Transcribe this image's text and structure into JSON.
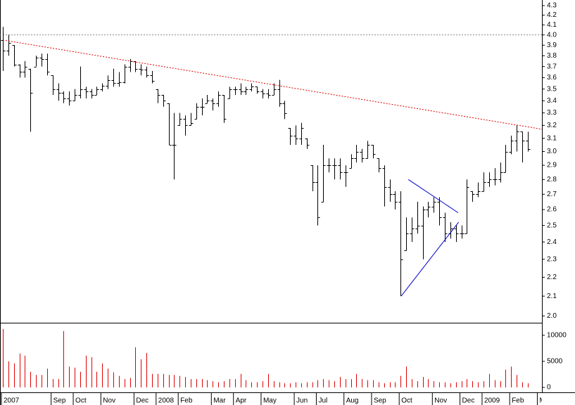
{
  "chart_data": {
    "type": "ohlc",
    "log": true,
    "ylim": [
      1.97,
      4.36
    ],
    "yticks": [
      {
        "value": 2,
        "label": "2.0"
      },
      2.1,
      2.2,
      2.3,
      2.4,
      2.5,
      2.6,
      2.7,
      2.8,
      2.9,
      {
        "value": 3,
        "label": "3.0"
      },
      3.1,
      3.2,
      3.3,
      3.4,
      3.5,
      3.6,
      3.7,
      3.8,
      3.9,
      {
        "value": 4,
        "label": "4.0"
      },
      4.1,
      4.2,
      4.3
    ],
    "color": "#000000",
    "categories": [
      "2007",
      null,
      null,
      null,
      null,
      null,
      null,
      null,
      null,
      "Sep",
      null,
      null,
      null,
      "Oct",
      null,
      null,
      null,
      null,
      "Nov",
      null,
      null,
      null,
      null,
      null,
      "Dec",
      null,
      null,
      null,
      "2008",
      null,
      null,
      null,
      "Feb",
      null,
      null,
      null,
      null,
      null,
      "Mar",
      null,
      null,
      null,
      "Apr",
      null,
      null,
      null,
      null,
      "May",
      null,
      null,
      null,
      null,
      null,
      "Jun",
      null,
      null,
      null,
      "Jul",
      null,
      null,
      null,
      null,
      "Aug",
      null,
      null,
      null,
      null,
      "Sep",
      null,
      null,
      null,
      null,
      "Oct",
      null,
      null,
      null,
      null,
      null,
      "Nov",
      null,
      null,
      null,
      null,
      "Dec",
      null,
      null,
      null,
      "2009",
      null,
      null,
      null,
      null,
      "Feb",
      null,
      null,
      null,
      null,
      "Ma"
    ],
    "open": [
      3.95,
      3.85,
      3.9,
      3.72,
      3.65,
      3.68,
      3.7,
      3.78,
      3.77,
      3.62,
      3.5,
      3.47,
      3.42,
      3.4,
      3.45,
      3.5,
      3.48,
      3.45,
      3.5,
      3.53,
      3.58,
      3.55,
      3.56,
      3.7,
      3.75,
      3.68,
      3.67,
      3.62,
      3.5,
      3.45,
      3.38,
      3.05,
      3.2,
      3.25,
      3.2,
      3.25,
      3.35,
      3.38,
      3.4,
      3.38,
      3.45,
      3.42,
      3.5,
      3.5,
      3.48,
      3.5,
      3.52,
      3.48,
      3.46,
      3.45,
      3.5,
      3.38,
      3.18,
      3.12,
      3.1,
      3.1,
      2.9,
      2.78,
      2.65,
      2.9,
      2.9,
      2.9,
      2.85,
      2.88,
      2.95,
      3.0,
      2.95,
      3.05,
      2.95,
      2.88,
      2.75,
      2.7,
      2.65,
      2.35,
      2.45,
      2.48,
      2.5,
      2.6,
      2.62,
      2.65,
      2.55,
      2.45,
      2.48,
      2.45,
      2.45,
      2.72,
      2.7,
      2.72,
      2.78,
      2.8,
      2.8,
      2.85,
      3.0,
      3.08,
      3.15,
      3.08,
      null,
      null
    ],
    "high": [
      4.08,
      4.0,
      3.9,
      3.72,
      3.75,
      3.68,
      3.8,
      3.82,
      3.82,
      3.62,
      3.55,
      3.48,
      3.48,
      3.5,
      3.7,
      3.52,
      3.5,
      3.52,
      3.55,
      3.62,
      3.68,
      3.65,
      3.72,
      3.77,
      3.75,
      3.72,
      3.7,
      3.66,
      3.5,
      3.45,
      3.38,
      3.3,
      3.3,
      3.28,
      3.3,
      3.38,
      3.42,
      3.45,
      3.42,
      3.48,
      3.45,
      3.52,
      3.52,
      3.55,
      3.52,
      3.55,
      3.52,
      3.5,
      3.5,
      3.55,
      3.58,
      3.4,
      3.18,
      3.2,
      3.22,
      3.1,
      2.9,
      2.9,
      3.05,
      2.95,
      2.95,
      2.95,
      2.9,
      2.98,
      3.05,
      3.02,
      3.08,
      3.05,
      2.95,
      2.9,
      2.8,
      2.72,
      2.72,
      2.55,
      2.55,
      2.65,
      2.62,
      2.65,
      2.68,
      2.68,
      2.58,
      2.52,
      2.5,
      2.5,
      2.8,
      2.72,
      2.78,
      2.85,
      2.85,
      2.88,
      2.92,
      3.05,
      3.12,
      3.2,
      3.15,
      3.15,
      null,
      null
    ],
    "low": [
      3.66,
      3.8,
      3.7,
      3.6,
      3.6,
      3.15,
      3.7,
      3.7,
      3.62,
      3.45,
      3.4,
      3.38,
      3.36,
      3.4,
      3.42,
      3.42,
      3.42,
      3.45,
      3.48,
      3.5,
      3.52,
      3.52,
      3.55,
      3.65,
      3.65,
      3.62,
      3.6,
      3.55,
      3.38,
      3.35,
      3.05,
      2.8,
      3.2,
      3.12,
      3.2,
      3.25,
      3.28,
      3.38,
      3.32,
      3.35,
      3.22,
      3.42,
      3.45,
      3.45,
      3.45,
      3.48,
      3.46,
      3.42,
      3.42,
      3.45,
      3.35,
      3.25,
      3.05,
      3.05,
      3.05,
      3.02,
      2.72,
      2.5,
      2.65,
      2.85,
      2.8,
      2.8,
      2.75,
      2.88,
      2.92,
      2.92,
      2.95,
      2.95,
      2.85,
      2.62,
      2.65,
      2.6,
      2.1,
      2.35,
      2.4,
      2.45,
      2.3,
      2.55,
      2.58,
      2.5,
      2.4,
      2.42,
      2.4,
      2.42,
      2.45,
      2.65,
      2.68,
      2.72,
      2.75,
      2.76,
      2.78,
      2.85,
      2.98,
      3.0,
      2.92,
      3.0,
      null,
      null
    ],
    "close": [
      3.85,
      3.92,
      3.72,
      3.65,
      3.7,
      3.47,
      3.78,
      3.77,
      3.65,
      3.5,
      3.47,
      3.42,
      3.4,
      3.45,
      3.5,
      3.48,
      3.45,
      3.5,
      3.53,
      3.58,
      3.55,
      3.56,
      3.7,
      3.75,
      3.68,
      3.67,
      3.62,
      3.57,
      3.45,
      3.4,
      3.05,
      3.05,
      3.25,
      3.2,
      3.22,
      3.35,
      3.35,
      3.4,
      3.38,
      3.45,
      3.25,
      3.5,
      3.5,
      3.48,
      3.5,
      3.52,
      3.48,
      3.46,
      3.45,
      3.5,
      3.38,
      3.3,
      3.12,
      3.1,
      3.18,
      3.05,
      2.78,
      2.55,
      2.9,
      2.9,
      2.9,
      2.85,
      2.85,
      2.95,
      3.0,
      2.95,
      3.05,
      2.98,
      2.88,
      2.75,
      2.7,
      2.65,
      2.3,
      2.45,
      2.48,
      2.5,
      2.6,
      2.62,
      2.65,
      2.55,
      2.45,
      2.48,
      2.45,
      2.45,
      2.75,
      2.7,
      2.72,
      2.78,
      2.8,
      2.8,
      2.85,
      3.0,
      3.08,
      3.15,
      3.08,
      3.02,
      null,
      null
    ],
    "volume": {
      "color": "#e00000",
      "ylim": [
        0,
        12000
      ],
      "yticks": [
        0,
        5000,
        10000
      ],
      "values": [
        11200,
        5000,
        4600,
        6500,
        6100,
        3000,
        2400,
        2400,
        3600,
        1600,
        1600,
        10800,
        4000,
        3800,
        3000,
        6100,
        5800,
        3000,
        4600,
        3600,
        2900,
        2200,
        1600,
        1800,
        7700,
        5400,
        6600,
        2600,
        2600,
        2600,
        2400,
        2400,
        2200,
        2000,
        1600,
        1600,
        1600,
        1400,
        1200,
        1000,
        1200,
        1600,
        1600,
        2600,
        1400,
        1000,
        1000,
        1200,
        2600,
        1200,
        1000,
        800,
        800,
        1000,
        800,
        1000,
        1000,
        1400,
        1600,
        1400,
        1200,
        2000,
        1600,
        1600,
        2600,
        1600,
        1400,
        1400,
        1000,
        800,
        1000,
        1000,
        2200,
        4000,
        1600,
        1200,
        2000,
        1600,
        1200,
        1000,
        1000,
        800,
        1000,
        1200,
        1600,
        1200,
        1000,
        1200,
        2600,
        1400,
        1200,
        3400,
        4000,
        2400,
        1000,
        800,
        null,
        null
      ]
    },
    "hlines": [
      {
        "value": 4,
        "color": "#888888"
      }
    ],
    "lines": [
      {
        "x": [
          0,
          97.6
        ],
        "y": [
          3.95,
          3.17
        ],
        "color": "#e00000",
        "dash": true
      },
      {
        "x": [
          73.4,
          82.4
        ],
        "y": [
          2.8,
          2.58
        ],
        "color": "#0000cc",
        "dash": false
      },
      {
        "x": [
          72.1,
          82.5
        ],
        "y": [
          2.1,
          2.52
        ],
        "color": "#0000cc",
        "dash": false
      }
    ]
  }
}
